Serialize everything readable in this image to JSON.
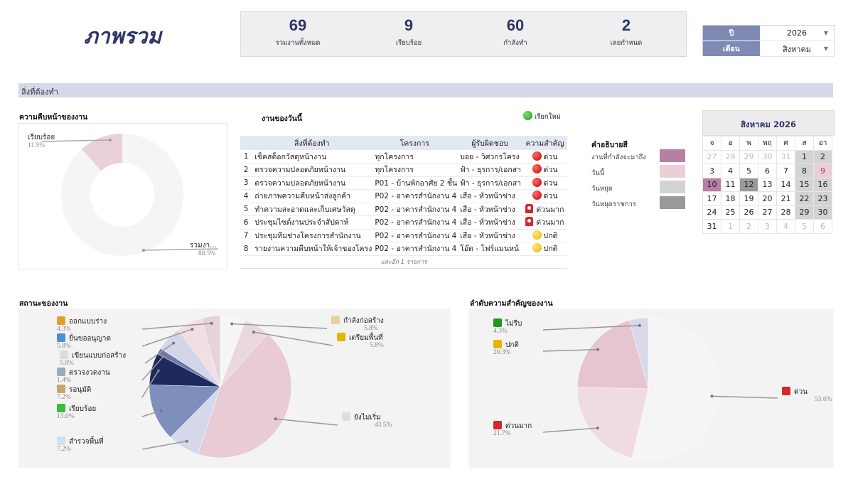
{
  "header": {
    "title": "ภาพรวม"
  },
  "kpis": [
    {
      "value": "69",
      "label": "รวมงานทั้งหมด"
    },
    {
      "value": "9",
      "label": "เรียบร้อย"
    },
    {
      "value": "60",
      "label": "กำลังทำ"
    },
    {
      "value": "2",
      "label": "เลยกำหนด"
    }
  ],
  "filters": {
    "year_label": "ปี",
    "year_value": "2026",
    "month_label": "เดือน",
    "month_value": "สิงหาคม"
  },
  "section_band": "สิ่งที่ต้องทำ",
  "progress": {
    "title": "ความคืบหน้าของงาน",
    "done_label": "เรียบร้อย",
    "done_pct": "11.5%",
    "rest_label": "รวมงา...",
    "rest_pct": "88.5%",
    "done_value": 11.5,
    "rest_value": 88.5
  },
  "today": {
    "title": "งานของวันนี้",
    "refresh_label": "เรียกใหม่",
    "columns": [
      "สิ่งที่ต้องทำ",
      "โครงการ",
      "ผู้รับผิดชอบ",
      "ความสำคัญ"
    ],
    "rows": [
      {
        "no": "1",
        "task": "เช็คสต็อกวัสดุหน้างาน",
        "project": "ทุกโครงการ",
        "owner": "บอย - วิศวกรโครง",
        "priority": "ด่วน",
        "icon": "red-circle-icon"
      },
      {
        "no": "2",
        "task": "ตรวจความปลอดภัยหน้างาน",
        "project": "ทุกโครงการ",
        "owner": "ฟ้า - ธุรการ/เอกสา",
        "priority": "ด่วน",
        "icon": "red-circle-icon"
      },
      {
        "no": "3",
        "task": "ตรวจความปลอดภัยหน้างาน",
        "project": "P01 - บ้านพักอาศัย 2 ชั้น",
        "owner": "ฟ้า - ธุรการ/เอกสา",
        "priority": "ด่วน",
        "icon": "red-circle-icon"
      },
      {
        "no": "4",
        "task": "ถ่ายภาพความคืบหน้าส่งลูกค้า",
        "project": "P02 - อาคารสำนักงาน 4",
        "owner": "เสือ - หัวหน้าช่าง",
        "priority": "ด่วน",
        "icon": "red-circle-icon"
      },
      {
        "no": "5",
        "task": "ทำความสะอาดและเก็บเศษวัสดุ",
        "project": "P02 - อาคารสำนักงาน 4",
        "owner": "เสือ - หัวหน้าช่าง",
        "priority": "ด่วนมาก",
        "icon": "siren-icon"
      },
      {
        "no": "6",
        "task": "ประชุมไซต์งานประจำสัปดาห์",
        "project": "P02 - อาคารสำนักงาน 4",
        "owner": "เสือ - หัวหน้าช่าง",
        "priority": "ด่วนมาก",
        "icon": "siren-icon"
      },
      {
        "no": "7",
        "task": "ประชุมทีมช่างโครงการสำนักงาน",
        "project": "P02 - อาคารสำนักงาน 4",
        "owner": "เสือ - หัวหน้าช่าง",
        "priority": "ปกติ",
        "icon": "yellow-circle-icon"
      },
      {
        "no": "8",
        "task": "รายงานความคืบหน้าให้เจ้าของโครง",
        "project": "P02 - อาคารสำนักงาน 4",
        "owner": "โอ๊ต - โฟร์แมนหน้",
        "priority": "ปกติ",
        "icon": "yellow-circle-icon"
      }
    ],
    "more": "และอีก 1 รายการ"
  },
  "color_legend": {
    "title": "คำอธิบายสี",
    "items": [
      {
        "label": "งานที่กำลังจะมาถึง",
        "color": "#b77fa3"
      },
      {
        "label": "วันนี้",
        "color": "#e9cfd8"
      },
      {
        "label": "วันหยุด",
        "color": "#d3d3d3"
      },
      {
        "label": "วันหยุดราชการ",
        "color": "#999999"
      }
    ]
  },
  "calendar": {
    "title": "สิงหาคม 2026",
    "weekdays": [
      "จ",
      "อ",
      "พ",
      "พฤ",
      "ศ",
      "ส",
      "อา"
    ],
    "weeks": [
      [
        {
          "d": "27",
          "t": "o"
        },
        {
          "d": "28",
          "t": "o"
        },
        {
          "d": "29",
          "t": "o"
        },
        {
          "d": "30",
          "t": "o"
        },
        {
          "d": "31",
          "t": "o"
        },
        {
          "d": "1",
          "t": "w"
        },
        {
          "d": "2",
          "t": "w"
        }
      ],
      [
        {
          "d": "3",
          "t": ""
        },
        {
          "d": "4",
          "t": ""
        },
        {
          "d": "5",
          "t": ""
        },
        {
          "d": "6",
          "t": ""
        },
        {
          "d": "7",
          "t": ""
        },
        {
          "d": "8",
          "t": "w"
        },
        {
          "d": "9",
          "t": "tw"
        }
      ],
      [
        {
          "d": "10",
          "t": "up"
        },
        {
          "d": "11",
          "t": ""
        },
        {
          "d": "12",
          "t": "hol"
        },
        {
          "d": "13",
          "t": ""
        },
        {
          "d": "14",
          "t": ""
        },
        {
          "d": "15",
          "t": "w"
        },
        {
          "d": "16",
          "t": "w"
        }
      ],
      [
        {
          "d": "17",
          "t": ""
        },
        {
          "d": "18",
          "t": ""
        },
        {
          "d": "19",
          "t": ""
        },
        {
          "d": "20",
          "t": ""
        },
        {
          "d": "21",
          "t": ""
        },
        {
          "d": "22",
          "t": "w"
        },
        {
          "d": "23",
          "t": "w"
        }
      ],
      [
        {
          "d": "24",
          "t": ""
        },
        {
          "d": "25",
          "t": ""
        },
        {
          "d": "26",
          "t": ""
        },
        {
          "d": "27",
          "t": ""
        },
        {
          "d": "28",
          "t": ""
        },
        {
          "d": "29",
          "t": "w"
        },
        {
          "d": "30",
          "t": "w"
        }
      ],
      [
        {
          "d": "31",
          "t": ""
        },
        {
          "d": "1",
          "t": "o"
        },
        {
          "d": "2",
          "t": "o"
        },
        {
          "d": "3",
          "t": "o"
        },
        {
          "d": "4",
          "t": "o"
        },
        {
          "d": "5",
          "t": "o"
        },
        {
          "d": "6",
          "t": "o"
        }
      ]
    ]
  },
  "status_chart": {
    "title": "สถานะของงาน"
  },
  "priority_chart": {
    "title": "ลำดับความสำคัญของงาน"
  },
  "chart_data": [
    {
      "type": "pie",
      "title": "ความคืบหน้าของงาน",
      "categories": [
        "เรียบร้อย",
        "รวมงา..."
      ],
      "values": [
        11.5,
        88.5
      ]
    },
    {
      "type": "pie",
      "title": "สถานะของงาน",
      "categories": [
        "ยังไม่เริ่ม",
        "สำรวจพื้นที่",
        "เรียบร้อย",
        "รอนุมัติ",
        "ตรวจงวดงาน",
        "เขียนแบบก่อสร้าง",
        "ยื่นขออนุญาต",
        "ออกแบบร่าง",
        "กำลังก่อสร้าง",
        "เตรียมพื้นที่"
      ],
      "values": [
        43.5,
        7.2,
        13.0,
        7.2,
        1.4,
        5.8,
        5.8,
        4.3,
        5.8,
        5.8
      ],
      "labels": [
        "ยังไม่เริ่ม",
        "สำรวจพื้นที่",
        "เรียบร้อย",
        "รอนุมัติ",
        "ตรวจงวดงาน",
        "เขียนแบบก่อสร้าง",
        "ยื่นขออนุญาต",
        "ออกแบบร่าง",
        "กำลังก่อสร้าง",
        "เตรียมพื้นที่"
      ],
      "pct_labels": [
        "43.5%",
        "7.2%",
        "13.0%",
        "7.2%",
        "1.4%",
        "5.8%",
        "5.8%",
        "4.3%",
        "5.8%",
        "5.8%"
      ]
    },
    {
      "type": "pie",
      "title": "ลำดับความสำคัญของงาน",
      "categories": [
        "ด่วน",
        "ด่วนมาก",
        "ปกติ",
        "ไม่รีบ"
      ],
      "values": [
        53.6,
        21.7,
        20.3,
        4.3
      ],
      "pct_labels": [
        "53.6%",
        "21.7%",
        "20.3%",
        "4.3%"
      ]
    }
  ]
}
